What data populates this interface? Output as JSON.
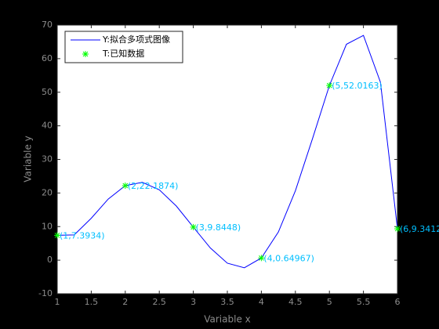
{
  "chart_data": {
    "type": "line",
    "xlabel": "Variable x",
    "ylabel": "Variable y",
    "xlim": [
      1,
      6
    ],
    "ylim": [
      -10,
      70
    ],
    "xticks": [
      1,
      1.5,
      2,
      2.5,
      3,
      3.5,
      4,
      4.5,
      5,
      5.5,
      6
    ],
    "yticks": [
      -10,
      0,
      10,
      20,
      30,
      40,
      50,
      60,
      70
    ],
    "legend": "upper left",
    "series": [
      {
        "name": "Y:拟合多项式图像",
        "color": "#0000ff",
        "type": "line",
        "x": [
          1,
          1.25,
          1.5,
          1.75,
          2,
          2.25,
          2.5,
          2.75,
          3,
          3.25,
          3.5,
          3.75,
          4,
          4.25,
          4.5,
          4.75,
          5,
          5.25,
          5.5,
          5.75,
          6
        ],
        "values": [
          7.3934,
          7.53,
          12.48,
          18.2,
          22.1874,
          23.17,
          20.95,
          16.12,
          9.8448,
          3.63,
          -0.9,
          -2.27,
          0.64967,
          8.39,
          20.65,
          36.08,
          52.0163,
          64.28,
          66.92,
          52.99,
          9.3412
        ]
      },
      {
        "name": "T:已知数据",
        "color": "#00ff00",
        "type": "scatter",
        "x": [
          1,
          2,
          3,
          4,
          5,
          6
        ],
        "values": [
          7.3934,
          22.1874,
          9.8448,
          0.64967,
          52.0163,
          9.3412
        ],
        "value_labels": [
          "(1,7.3934)",
          "(2,22.1874)",
          "(3,9.8448)",
          "(4,0.64967)",
          "(5,52.0163)",
          "(6,9.3412)"
        ]
      }
    ]
  }
}
